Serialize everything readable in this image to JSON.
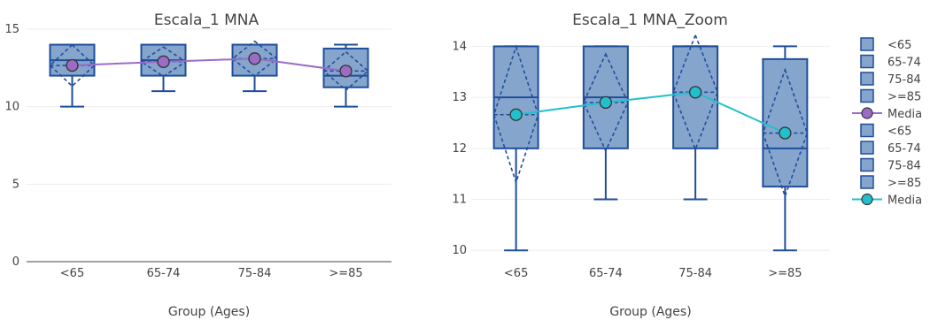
{
  "chart_data": [
    {
      "type": "box",
      "title": "Escala_1 MNA",
      "xlabel": "Group (Ages)",
      "ylabel": "",
      "categories": [
        "<65",
        "65-74",
        "75-84",
        ">=85"
      ],
      "ylim": [
        0,
        15
      ],
      "yticks": [
        0,
        5,
        10,
        15
      ],
      "grid": true,
      "boxes": [
        {
          "name": "<65",
          "min": 10,
          "q1": 12,
          "median": 13,
          "q3": 14,
          "max": 14,
          "mean": 12.66,
          "sd": 1.33
        },
        {
          "name": "65-74",
          "min": 11,
          "q1": 12,
          "median": 13,
          "q3": 14,
          "max": 14,
          "mean": 12.9,
          "sd": 0.95
        },
        {
          "name": "75-84",
          "min": 11,
          "q1": 12,
          "median": 14,
          "q3": 14,
          "max": 14,
          "mean": 13.1,
          "sd": 1.12
        },
        {
          "name": ">=85",
          "min": 10,
          "q1": 11.25,
          "median": 12,
          "q3": 13.75,
          "max": 14,
          "mean": 12.3,
          "sd": 1.24
        }
      ],
      "mean_series": {
        "name": "Media",
        "values": [
          12.66,
          12.9,
          13.1,
          12.3
        ],
        "color": "#9b6cc6"
      },
      "box_color": "#1f4e9c",
      "box_fill": "#86a5cc"
    },
    {
      "type": "box",
      "title": "Escala_1 MNA_Zoom",
      "xlabel": "Group (Ages)",
      "ylabel": "",
      "categories": [
        "<65",
        "65-74",
        "75-84",
        ">=85"
      ],
      "ylim": [
        9.9,
        14.25
      ],
      "yticks": [
        10,
        11,
        12,
        13,
        14
      ],
      "grid": true,
      "boxes": [
        {
          "name": "<65",
          "min": 10,
          "q1": 12,
          "median": 13,
          "q3": 14,
          "max": 14,
          "mean": 12.66,
          "sd": 1.33
        },
        {
          "name": "65-74",
          "min": 11,
          "q1": 12,
          "median": 13,
          "q3": 14,
          "max": 14,
          "mean": 12.9,
          "sd": 0.95
        },
        {
          "name": "75-84",
          "min": 11,
          "q1": 12,
          "median": 14,
          "q3": 14,
          "max": 14,
          "mean": 13.1,
          "sd": 1.12
        },
        {
          "name": ">=85",
          "min": 10,
          "q1": 11.25,
          "median": 12,
          "q3": 13.75,
          "max": 14,
          "mean": 12.3,
          "sd": 1.24
        }
      ],
      "mean_series": {
        "name": "Media",
        "values": [
          12.66,
          12.9,
          13.1,
          12.3
        ],
        "color": "#22c0cc"
      },
      "box_color": "#1f4e9c",
      "box_fill": "#86a5cc"
    }
  ],
  "legend": {
    "placement": "right",
    "groups": [
      {
        "boxes": [
          "<65",
          "65-74",
          "75-84",
          ">=85"
        ],
        "line": "Media",
        "line_color": "#9b6cc6"
      },
      {
        "boxes": [
          "<65",
          "65-74",
          "75-84",
          ">=85"
        ],
        "line": "Media",
        "line_color": "#22c0cc"
      }
    ]
  }
}
